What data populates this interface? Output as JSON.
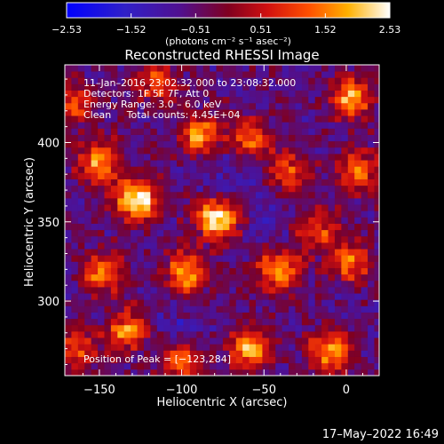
{
  "chart_data": {
    "type": "heatmap",
    "title": "Reconstructed RHESSI Image",
    "xlabel": "Heliocentric X (arcsec)",
    "ylabel": "Heliocentric Y (arcsec)",
    "xlim": [
      -171,
      20
    ],
    "ylim": [
      253,
      449
    ],
    "xticks": [
      -150,
      -100,
      -50,
      0
    ],
    "xtick_labels": [
      "−150",
      "−100",
      "−50",
      "0"
    ],
    "yticks": [
      300,
      350,
      400
    ],
    "ytick_labels": [
      "300",
      "350",
      "400"
    ],
    "colorbar": {
      "range": [
        -2.53,
        2.53
      ],
      "tick_values": [
        -2.53,
        -1.52,
        -0.51,
        0.51,
        1.52,
        2.53
      ],
      "tick_labels": [
        "−2.53",
        "−1.52",
        "−0.51",
        "0.51",
        "1.52",
        "2.53"
      ],
      "unit": "(photons cm⁻² s⁻¹ asec⁻²)"
    },
    "annotations": [
      "11–Jan–2016 23:02:32.000 to 23:08:32.000",
      "Detectors: 1F 5F 7F, Att 0",
      "Energy Range: 3.0 – 6.0 keV",
      "Clean     Total counts: 4.45E+04"
    ],
    "peak_label": "Position of Peak = [−123,284]",
    "peak": [
      -123,
      284
    ],
    "sources": [
      {
        "x": -127,
        "y": 364,
        "value": 2.53
      },
      {
        "x": -78,
        "y": 352,
        "value": 2.5
      },
      {
        "x": -88,
        "y": 405,
        "value": 1.9
      },
      {
        "x": -58,
        "y": 402,
        "value": 1.4
      },
      {
        "x": -150,
        "y": 388,
        "value": 1.8
      },
      {
        "x": -97,
        "y": 318,
        "value": 1.9
      },
      {
        "x": -41,
        "y": 320,
        "value": 1.7
      },
      {
        "x": -148,
        "y": 318,
        "value": 1.4
      },
      {
        "x": -133,
        "y": 282,
        "value": 1.5
      },
      {
        "x": -58,
        "y": 270,
        "value": 1.8
      },
      {
        "x": -35,
        "y": 380,
        "value": 1.3
      },
      {
        "x": 3,
        "y": 428,
        "value": 1.9
      },
      {
        "x": 7,
        "y": 382,
        "value": 1.5
      },
      {
        "x": 2,
        "y": 325,
        "value": 1.3
      },
      {
        "x": -10,
        "y": 268,
        "value": 1.9
      },
      {
        "x": -100,
        "y": 262,
        "value": 1.2
      },
      {
        "x": -163,
        "y": 270,
        "value": 1.1
      },
      {
        "x": -165,
        "y": 425,
        "value": 1.0
      },
      {
        "x": -18,
        "y": 345,
        "value": 1.1
      },
      {
        "x": -115,
        "y": 438,
        "value": 1.2
      }
    ]
  },
  "footer": {
    "date": "17–May–2022 16:49"
  }
}
